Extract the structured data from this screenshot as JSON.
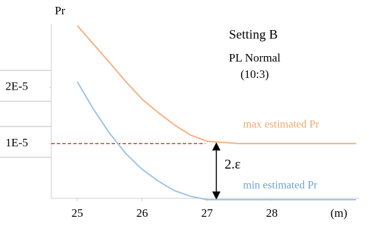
{
  "chart_data": {
    "type": "line",
    "title": "Setting B",
    "subtitle_lines": [
      "PL Normal",
      "(10:3)"
    ],
    "y_label": "Pr",
    "x_label": "(m)",
    "annotation": "2.ε",
    "x": [
      25,
      25.25,
      25.5,
      25.75,
      26,
      26.25,
      26.5,
      26.75,
      27,
      27.5,
      28,
      28.5,
      29,
      29.3
    ],
    "series": [
      {
        "name": "max estimated Pr",
        "color": "#f4b183",
        "values": [
          3.1e-05,
          2.77e-05,
          2.44e-05,
          2.1e-05,
          1.79e-05,
          1.55e-05,
          1.33e-05,
          1.15e-05,
          1.04e-05,
          1e-05,
          1e-05,
          1e-05,
          1e-05,
          1e-05
        ]
      },
      {
        "name": "min estimated Pr",
        "color": "#9dc3e6",
        "values": [
          2.1e-05,
          1.61e-05,
          1.18e-05,
          8.2e-06,
          5.4e-06,
          3.3e-06,
          1.6e-06,
          6e-07,
          0,
          0,
          0,
          0,
          0,
          0
        ]
      }
    ],
    "xlim": [
      24.6,
      29.35
    ],
    "ylim": [
      0,
      3.13e-05
    ],
    "xticks": [
      25,
      26,
      27,
      28
    ],
    "yticks": [
      {
        "value": 2e-05,
        "label": "2E-5"
      },
      {
        "value": 1e-05,
        "label": "1E-5"
      }
    ],
    "grid": false
  }
}
